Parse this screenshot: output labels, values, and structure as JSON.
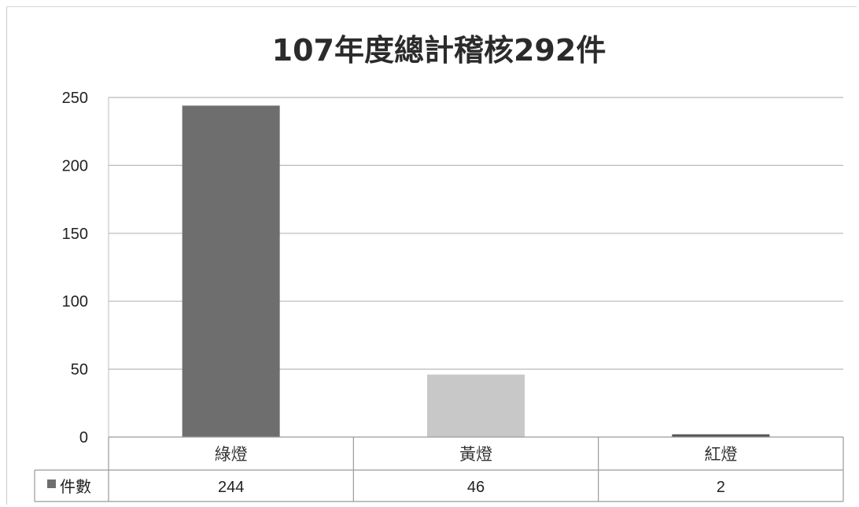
{
  "chart_data": {
    "type": "bar",
    "title": "107年度總計稽核292件",
    "categories": [
      "綠燈",
      "黃燈",
      "紅燈"
    ],
    "series": [
      {
        "name": "件數",
        "values": [
          244,
          46,
          2
        ],
        "colors": [
          "#6e6e6e",
          "#c8c8c8",
          "#555555"
        ]
      }
    ],
    "ylim": [
      0,
      250
    ],
    "yticks": [
      0,
      50,
      100,
      150,
      200,
      250
    ],
    "grid": true,
    "legend": "data-table"
  }
}
